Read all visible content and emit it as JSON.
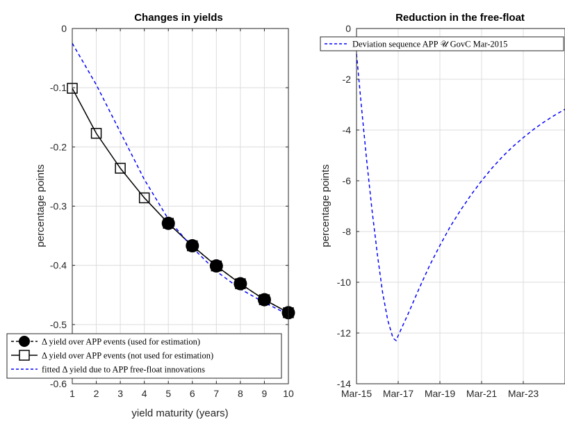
{
  "chart_data": [
    {
      "type": "line",
      "title": "Changes in yields",
      "xlabel": "yield maturity (years)",
      "ylabel": "percentage points",
      "xlim": [
        1,
        10
      ],
      "ylim": [
        -0.6,
        0
      ],
      "xticks": [
        1,
        2,
        3,
        4,
        5,
        6,
        7,
        8,
        9,
        10
      ],
      "yticks": [
        0,
        -0.1,
        -0.2,
        -0.3,
        -0.4,
        -0.5,
        -0.6
      ],
      "ytick_labels": [
        "0",
        "-0.1",
        "-0.2",
        "-0.3",
        "-0.4",
        "-0.5",
        "-0.6"
      ],
      "grid": true,
      "legend_position": "bottom-left",
      "series": [
        {
          "name": "Δ yield over APP events (used for estimation)",
          "style": "filled-circle-dashed",
          "color": "#000000",
          "x": [
            5,
            6,
            7,
            8,
            9,
            10
          ],
          "y": [
            -0.329,
            -0.367,
            -0.401,
            -0.431,
            -0.458,
            -0.48
          ]
        },
        {
          "name": "Δ yield over APP events (not used for estimation)",
          "style": "open-square-solid",
          "color": "#000000",
          "x": [
            1,
            2,
            3,
            4,
            5,
            6,
            7,
            8,
            9,
            10
          ],
          "y": [
            -0.101,
            -0.177,
            -0.236,
            -0.286,
            -0.329,
            -0.367,
            -0.401,
            -0.431,
            -0.458,
            -0.48
          ]
        },
        {
          "name": "fitted Δ yield due to APP free-float innovations",
          "style": "dashed",
          "color": "#0000ff",
          "x": [
            1,
            2,
            3,
            4,
            5,
            6,
            7,
            8,
            9,
            10
          ],
          "y": [
            -0.025,
            -0.095,
            -0.175,
            -0.255,
            -0.322,
            -0.37,
            -0.41,
            -0.44,
            -0.463,
            -0.483
          ]
        }
      ]
    },
    {
      "type": "line",
      "title": "Reduction in the free-float",
      "xlabel": "",
      "ylabel": "percentage points",
      "xlim": [
        2015.0,
        2025.0
      ],
      "ylim": [
        -14,
        0
      ],
      "xticks": [
        2015.0,
        2017.0,
        2019.0,
        2021.0,
        2023.0
      ],
      "xtick_labels": [
        "Mar-15",
        "Mar-17",
        "Mar-19",
        "Mar-21",
        "Mar-23"
      ],
      "yticks": [
        0,
        -2,
        -4,
        -6,
        -8,
        -10,
        -12,
        -14
      ],
      "ytick_labels": [
        "0",
        "-2",
        "-4",
        "-6",
        "-8",
        "-10",
        "-12",
        "-14"
      ],
      "grid": true,
      "legend_position": "top",
      "series": [
        {
          "name": "Deviation sequence APP 𝒰 GovC Mar-2015",
          "style": "dashed",
          "color": "#0000ff",
          "x": [
            2015.0,
            2015.25,
            2015.5,
            2015.75,
            2016.0,
            2016.25,
            2016.5,
            2016.75,
            2016.9,
            2017.0,
            2017.5,
            2018.0,
            2018.5,
            2019.0,
            2019.5,
            2020.0,
            2020.5,
            2021.0,
            2021.5,
            2022.0,
            2022.5,
            2023.0,
            2023.5,
            2024.0,
            2024.5,
            2025.0
          ],
          "y": [
            -1.0,
            -3.2,
            -5.3,
            -7.2,
            -8.9,
            -10.4,
            -11.5,
            -12.2,
            -12.3,
            -12.1,
            -11.2,
            -10.25,
            -9.35,
            -8.55,
            -7.8,
            -7.15,
            -6.55,
            -6.0,
            -5.5,
            -5.05,
            -4.65,
            -4.3,
            -3.97,
            -3.68,
            -3.42,
            -3.18
          ]
        }
      ]
    }
  ]
}
